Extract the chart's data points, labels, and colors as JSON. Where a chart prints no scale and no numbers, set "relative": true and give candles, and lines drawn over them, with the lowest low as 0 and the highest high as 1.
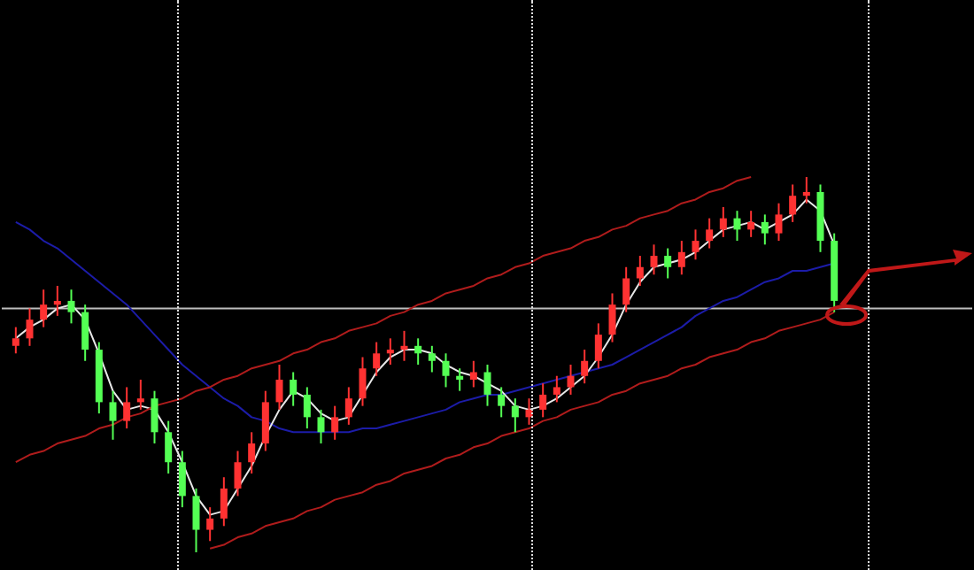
{
  "chart_data": {
    "type": "candlestick",
    "relative": true,
    "marker": "none",
    "categories": [
      null,
      null,
      null,
      null,
      null,
      null,
      null,
      null,
      null,
      null,
      null,
      null,
      null,
      null,
      null,
      null,
      null,
      null,
      null,
      null,
      null,
      null,
      null,
      null,
      null,
      null,
      null,
      null,
      null,
      null,
      null,
      null,
      null,
      null,
      null,
      null,
      null,
      null,
      null,
      null,
      null,
      null,
      null,
      null,
      null,
      null,
      null,
      null,
      null,
      null,
      null,
      null,
      null,
      null,
      null,
      null,
      null,
      null,
      null,
      null
    ],
    "ohlc": [
      [
        0.55,
        0.6,
        0.53,
        0.57
      ],
      [
        0.57,
        0.65,
        0.55,
        0.62
      ],
      [
        0.62,
        0.7,
        0.6,
        0.66
      ],
      [
        0.66,
        0.71,
        0.63,
        0.67
      ],
      [
        0.67,
        0.7,
        0.61,
        0.64
      ],
      [
        0.64,
        0.66,
        0.51,
        0.54
      ],
      [
        0.54,
        0.56,
        0.37,
        0.4
      ],
      [
        0.4,
        0.43,
        0.3,
        0.35
      ],
      [
        0.35,
        0.44,
        0.33,
        0.4
      ],
      [
        0.4,
        0.46,
        0.38,
        0.41
      ],
      [
        0.41,
        0.43,
        0.29,
        0.32
      ],
      [
        0.32,
        0.35,
        0.21,
        0.24
      ],
      [
        0.24,
        0.27,
        0.12,
        0.15
      ],
      [
        0.15,
        0.17,
        0.0,
        0.06
      ],
      [
        0.06,
        0.12,
        0.03,
        0.09
      ],
      [
        0.09,
        0.2,
        0.07,
        0.17
      ],
      [
        0.17,
        0.27,
        0.15,
        0.24
      ],
      [
        0.24,
        0.32,
        0.21,
        0.29
      ],
      [
        0.29,
        0.43,
        0.27,
        0.4
      ],
      [
        0.4,
        0.5,
        0.38,
        0.46
      ],
      [
        0.46,
        0.48,
        0.39,
        0.42
      ],
      [
        0.42,
        0.44,
        0.33,
        0.36
      ],
      [
        0.36,
        0.38,
        0.29,
        0.32
      ],
      [
        0.32,
        0.39,
        0.3,
        0.36
      ],
      [
        0.36,
        0.44,
        0.34,
        0.41
      ],
      [
        0.41,
        0.52,
        0.39,
        0.49
      ],
      [
        0.49,
        0.56,
        0.47,
        0.53
      ],
      [
        0.53,
        0.57,
        0.5,
        0.54
      ],
      [
        0.54,
        0.59,
        0.51,
        0.55
      ],
      [
        0.55,
        0.57,
        0.5,
        0.53
      ],
      [
        0.53,
        0.55,
        0.48,
        0.51
      ],
      [
        0.51,
        0.53,
        0.44,
        0.47
      ],
      [
        0.47,
        0.49,
        0.43,
        0.46
      ],
      [
        0.46,
        0.51,
        0.44,
        0.48
      ],
      [
        0.48,
        0.5,
        0.39,
        0.42
      ],
      [
        0.42,
        0.44,
        0.36,
        0.39
      ],
      [
        0.39,
        0.41,
        0.32,
        0.36
      ],
      [
        0.36,
        0.41,
        0.34,
        0.38
      ],
      [
        0.38,
        0.45,
        0.36,
        0.42
      ],
      [
        0.42,
        0.47,
        0.4,
        0.44
      ],
      [
        0.44,
        0.5,
        0.42,
        0.47
      ],
      [
        0.47,
        0.54,
        0.45,
        0.51
      ],
      [
        0.51,
        0.61,
        0.49,
        0.58
      ],
      [
        0.58,
        0.69,
        0.56,
        0.66
      ],
      [
        0.66,
        0.76,
        0.64,
        0.73
      ],
      [
        0.73,
        0.79,
        0.71,
        0.76
      ],
      [
        0.76,
        0.82,
        0.74,
        0.79
      ],
      [
        0.79,
        0.81,
        0.73,
        0.76
      ],
      [
        0.76,
        0.83,
        0.74,
        0.8
      ],
      [
        0.8,
        0.86,
        0.78,
        0.83
      ],
      [
        0.83,
        0.89,
        0.81,
        0.86
      ],
      [
        0.86,
        0.92,
        0.84,
        0.89
      ],
      [
        0.89,
        0.91,
        0.83,
        0.86
      ],
      [
        0.86,
        0.91,
        0.84,
        0.88
      ],
      [
        0.88,
        0.9,
        0.82,
        0.85
      ],
      [
        0.85,
        0.93,
        0.83,
        0.9
      ],
      [
        0.9,
        0.98,
        0.88,
        0.95
      ],
      [
        0.95,
        1.0,
        0.93,
        0.96
      ],
      [
        0.96,
        0.98,
        0.8,
        0.83
      ],
      [
        0.83,
        0.85,
        0.64,
        0.67
      ]
    ],
    "colors": [
      "#ff3232",
      "#ff3232",
      "#ff3232",
      "#ff3232",
      "#54ff54",
      "#54ff54",
      "#54ff54",
      "#54ff54",
      "#ff3232",
      "#ff3232",
      "#54ff54",
      "#54ff54",
      "#54ff54",
      "#54ff54",
      "#ff3232",
      "#ff3232",
      "#ff3232",
      "#ff3232",
      "#ff3232",
      "#ff3232",
      "#54ff54",
      "#54ff54",
      "#54ff54",
      "#ff3232",
      "#ff3232",
      "#ff3232",
      "#ff3232",
      "#ff3232",
      "#ff3232",
      "#54ff54",
      "#54ff54",
      "#54ff54",
      "#54ff54",
      "#ff3232",
      "#54ff54",
      "#54ff54",
      "#54ff54",
      "#ff3232",
      "#ff3232",
      "#ff3232",
      "#ff3232",
      "#ff3232",
      "#ff3232",
      "#ff3232",
      "#ff3232",
      "#ff3232",
      "#ff3232",
      "#54ff54",
      "#ff3232",
      "#ff3232",
      "#ff3232",
      "#ff3232",
      "#54ff54",
      "#ff3232",
      "#54ff54",
      "#ff3232",
      "#ff3232",
      "#ff3232",
      "#54ff54",
      "#54ff54"
    ],
    "series": [
      {
        "type": "line",
        "color": "#1c1ca8",
        "values": [
          0.88,
          0.86,
          0.83,
          0.81,
          0.78,
          0.75,
          0.72,
          0.69,
          0.66,
          0.62,
          0.58,
          0.54,
          0.5,
          0.47,
          0.44,
          0.41,
          0.39,
          0.36,
          0.35,
          0.33,
          0.32,
          0.32,
          0.32,
          0.32,
          0.32,
          0.33,
          0.33,
          0.34,
          0.35,
          0.36,
          0.37,
          0.38,
          0.4,
          0.41,
          0.42,
          0.42,
          0.43,
          0.44,
          0.45,
          0.46,
          0.47,
          0.48,
          0.49,
          0.5,
          0.52,
          0.54,
          0.56,
          0.58,
          0.6,
          0.63,
          0.65,
          0.67,
          0.68,
          0.7,
          0.72,
          0.73,
          0.75,
          0.75,
          0.76,
          0.77
        ]
      },
      {
        "type": "line",
        "color": "#e8e8e8",
        "values": [
          0.57,
          0.6,
          0.62,
          0.65,
          0.66,
          0.62,
          0.53,
          0.43,
          0.38,
          0.39,
          0.38,
          0.32,
          0.24,
          0.15,
          0.1,
          0.11,
          0.17,
          0.23,
          0.31,
          0.38,
          0.43,
          0.41,
          0.37,
          0.35,
          0.36,
          0.42,
          0.48,
          0.52,
          0.54,
          0.54,
          0.53,
          0.5,
          0.48,
          0.47,
          0.45,
          0.43,
          0.39,
          0.38,
          0.39,
          0.41,
          0.44,
          0.47,
          0.52,
          0.58,
          0.66,
          0.72,
          0.76,
          0.77,
          0.78,
          0.8,
          0.83,
          0.86,
          0.87,
          0.88,
          0.86,
          0.88,
          0.9,
          0.94,
          0.91,
          0.82
        ]
      },
      {
        "type": "line",
        "color": "#b01c1c",
        "values": [
          0.24,
          0.26,
          0.27,
          0.29,
          0.3,
          0.31,
          0.33,
          0.34,
          0.36,
          0.37,
          0.39,
          0.4,
          0.41,
          0.43,
          0.44,
          0.46,
          0.47,
          0.49,
          0.5,
          0.51,
          0.53,
          0.54,
          0.56,
          0.57,
          0.59,
          0.6,
          0.61,
          0.63,
          0.64,
          0.66,
          0.67,
          0.69,
          0.7,
          0.71,
          0.73,
          0.74,
          0.76,
          0.77,
          0.79,
          0.8,
          0.81,
          0.83,
          0.84,
          0.86,
          0.87,
          0.89,
          0.9,
          0.91,
          0.93,
          0.94,
          0.96,
          0.97,
          0.99,
          1.0,
          null,
          null,
          null,
          null,
          null,
          null
        ]
      },
      {
        "type": "line",
        "color": "#b01c1c",
        "values": [
          null,
          null,
          null,
          null,
          null,
          null,
          null,
          null,
          null,
          null,
          null,
          null,
          null,
          null,
          0.01,
          0.02,
          0.04,
          0.05,
          0.07,
          0.08,
          0.09,
          0.11,
          0.12,
          0.14,
          0.15,
          0.16,
          0.18,
          0.19,
          0.21,
          0.22,
          0.23,
          0.25,
          0.26,
          0.28,
          0.29,
          0.31,
          0.32,
          0.33,
          0.35,
          0.36,
          0.38,
          0.39,
          0.4,
          0.42,
          0.43,
          0.45,
          0.46,
          0.47,
          0.49,
          0.5,
          0.52,
          0.53,
          0.54,
          0.56,
          0.57,
          0.59,
          0.6,
          0.61,
          0.62,
          0.64
        ]
      }
    ],
    "ref_lines": [
      {
        "axis": "y",
        "value": 0.65,
        "color": "#bdbdbd"
      }
    ]
  }
}
